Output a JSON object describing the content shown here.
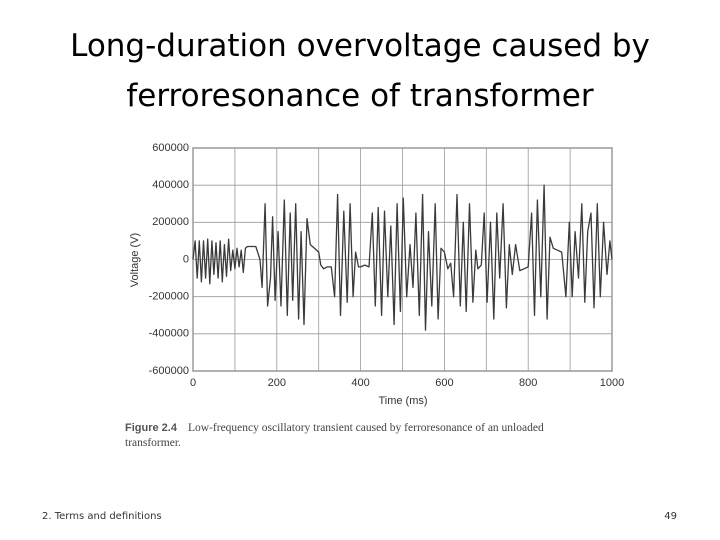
{
  "slide": {
    "title": [
      "Long-duration overvoltage caused by",
      "ferroresonance of transformer"
    ],
    "footer": "2. Terms and definitions",
    "page": "49"
  },
  "chart_data": {
    "type": "line",
    "figure_label": "Figure 2.4",
    "caption": [
      "Low-frequency oscillatory transient caused by ferroresonance of an unloaded",
      "transformer."
    ],
    "xlabel": "Time (ms)",
    "ylabel": "Voltage (V)",
    "xlim": [
      0,
      1000
    ],
    "xticks": [
      0,
      200,
      400,
      600,
      800,
      1000
    ],
    "x_minor_grid": [
      100,
      300,
      500,
      700,
      900
    ],
    "ylim": [
      -600000,
      600000
    ],
    "yticks": [
      600000,
      400000,
      200000,
      0,
      -200000,
      -400000,
      -600000
    ],
    "grid": true,
    "color": "#3a3a3a",
    "x": [
      0,
      5,
      10,
      15,
      20,
      25,
      30,
      35,
      40,
      45,
      50,
      55,
      60,
      65,
      70,
      75,
      80,
      85,
      90,
      95,
      100,
      105,
      110,
      115,
      120,
      125,
      130,
      140,
      150,
      160,
      165,
      172,
      178,
      185,
      190,
      196,
      203,
      210,
      218,
      225,
      232,
      238,
      245,
      252,
      258,
      265,
      272,
      280,
      290,
      300,
      305,
      312,
      320,
      330,
      338,
      345,
      352,
      360,
      368,
      375,
      382,
      388,
      395,
      400,
      410,
      420,
      428,
      435,
      442,
      450,
      457,
      465,
      472,
      480,
      487,
      495,
      502,
      510,
      518,
      525,
      532,
      540,
      548,
      555,
      562,
      570,
      578,
      585,
      592,
      600,
      608,
      615,
      622,
      630,
      638,
      645,
      652,
      660,
      668,
      675,
      680,
      688,
      695,
      702,
      710,
      718,
      725,
      732,
      740,
      748,
      755,
      762,
      770,
      780,
      790,
      800,
      808,
      815,
      822,
      830,
      838,
      845,
      852,
      860,
      870,
      880,
      890,
      898,
      905,
      912,
      920,
      928,
      935,
      942,
      950,
      957,
      965,
      972,
      980,
      988,
      995,
      1000
    ],
    "values": [
      0,
      100000,
      -100000,
      100000,
      -120000,
      100000,
      -100000,
      110000,
      -130000,
      100000,
      -80000,
      90000,
      -100000,
      100000,
      -120000,
      80000,
      -90000,
      110000,
      -60000,
      50000,
      -50000,
      60000,
      -40000,
      50000,
      -70000,
      60000,
      70000,
      70000,
      70000,
      0,
      -150000,
      300000,
      -250000,
      -100000,
      230000,
      -220000,
      150000,
      -250000,
      320000,
      -300000,
      250000,
      -220000,
      300000,
      -320000,
      150000,
      -350000,
      220000,
      80000,
      60000,
      40000,
      -30000,
      -50000,
      -40000,
      -40000,
      -200000,
      350000,
      -300000,
      260000,
      -230000,
      300000,
      -200000,
      40000,
      -40000,
      -40000,
      -30000,
      -40000,
      250000,
      -250000,
      280000,
      -300000,
      260000,
      -200000,
      180000,
      -350000,
      300000,
      -280000,
      330000,
      -200000,
      80000,
      -150000,
      250000,
      -300000,
      350000,
      -380000,
      150000,
      -250000,
      300000,
      -320000,
      60000,
      40000,
      -50000,
      -20000,
      -200000,
      350000,
      -250000,
      200000,
      -280000,
      300000,
      -230000,
      50000,
      -50000,
      -30000,
      250000,
      -230000,
      200000,
      -320000,
      250000,
      -100000,
      300000,
      -260000,
      80000,
      -80000,
      80000,
      -60000,
      -50000,
      -40000,
      250000,
      -300000,
      320000,
      -200000,
      400000,
      -320000,
      120000,
      60000,
      50000,
      40000,
      -200000,
      200000,
      -200000,
      150000,
      -100000,
      300000,
      -230000,
      150000,
      250000,
      -260000,
      300000,
      -200000,
      200000,
      -80000,
      100000,
      0
    ]
  }
}
